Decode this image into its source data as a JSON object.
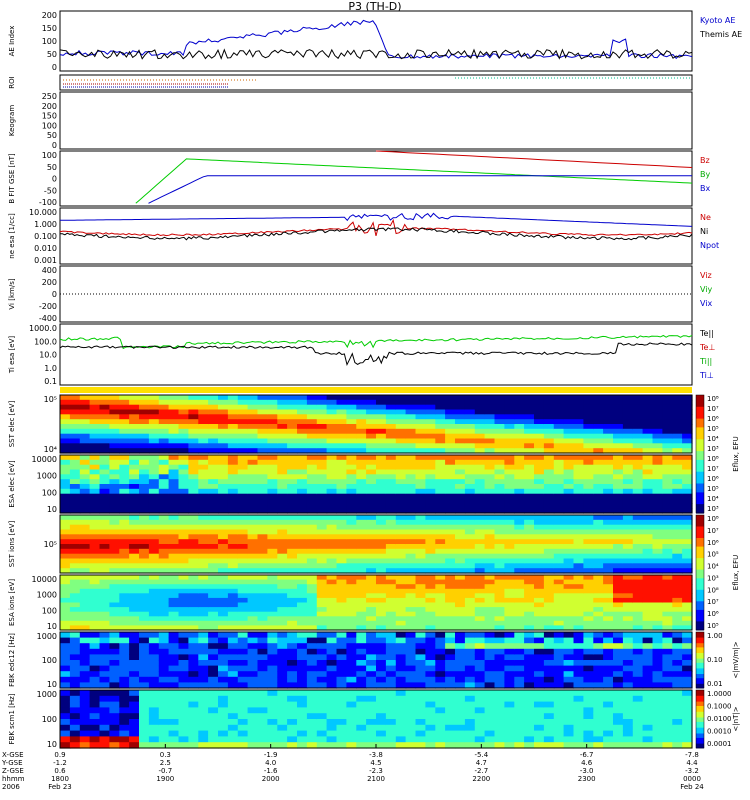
{
  "title": "P3 (TH-D)",
  "chart_data": {
    "type": "line",
    "panels": [
      {
        "name": "ae",
        "ylabel": "AE Index",
        "yticks": [
          "200",
          "150",
          "100",
          "50",
          "0"
        ],
        "legend": [
          {
            "label": "Kyoto AE",
            "color": "#0000cc"
          },
          {
            "label": "Themis AE",
            "color": "#000000"
          }
        ]
      },
      {
        "name": "roi",
        "ylabel": "ROI",
        "yticks": [],
        "legend": []
      },
      {
        "name": "keogram",
        "ylabel": "Keogram",
        "yticks": [
          "250",
          "200",
          "150",
          "100",
          "50",
          "0"
        ],
        "legend": []
      },
      {
        "name": "bfield",
        "ylabel": "B FIT GSE [nT]",
        "yticks": [
          "100",
          "50",
          "0",
          "-50",
          "-100"
        ],
        "legend": [
          {
            "label": "Bz",
            "color": "#cc0000"
          },
          {
            "label": "By",
            "color": "#00aa00"
          },
          {
            "label": "Bx",
            "color": "#0000cc"
          }
        ]
      },
      {
        "name": "density",
        "ylabel": "ne esa [1/cc]",
        "yticks": [
          "10.000",
          "1.000",
          "0.100",
          "0.010",
          "0.001"
        ],
        "legend": [
          {
            "label": "Ne",
            "color": "#cc0000"
          },
          {
            "label": "Ni",
            "color": "#000000"
          },
          {
            "label": "Npot",
            "color": "#0000cc"
          }
        ]
      },
      {
        "name": "velocity",
        "ylabel": "Vi [km/s]",
        "yticks": [
          "400",
          "200",
          "0",
          "-200",
          "-400"
        ],
        "legend": [
          {
            "label": "Viz",
            "color": "#cc0000"
          },
          {
            "label": "Viy",
            "color": "#00aa00"
          },
          {
            "label": "Vix",
            "color": "#0000cc"
          }
        ]
      },
      {
        "name": "temperature",
        "ylabel": "Ti esa [eV]",
        "yticks": [
          "1000.0",
          "100.0",
          "10.0",
          "1.0",
          "0.1"
        ],
        "legend": [
          {
            "label": "Te||",
            "color": "#000000"
          },
          {
            "label": "Te⊥",
            "color": "#cc0000"
          },
          {
            "label": "Ti||",
            "color": "#00aa00"
          },
          {
            "label": "Ti⊥",
            "color": "#0000cc"
          }
        ]
      },
      {
        "name": "sst_e",
        "ylabel": "SST elec [eV]",
        "yticks": [
          "10⁵",
          "10⁴"
        ],
        "legend": []
      },
      {
        "name": "esa_e",
        "ylabel": "ESA elec [eV]",
        "yticks": [
          "10000",
          "1000",
          "100",
          "10"
        ],
        "legend": []
      },
      {
        "name": "sst_i",
        "ylabel": "SST ions [eV]",
        "yticks": [
          "10⁵"
        ],
        "legend": []
      },
      {
        "name": "esa_i",
        "ylabel": "ESA ions [eV]",
        "yticks": [
          "10000",
          "1000",
          "100",
          "10"
        ],
        "legend": []
      },
      {
        "name": "fbk_e",
        "ylabel": "FBK edc12 [Hz]",
        "yticks": [
          "1000",
          "100",
          "10"
        ],
        "legend": []
      },
      {
        "name": "fbk_b",
        "ylabel": "FBK scm1 [Hz]",
        "yticks": [
          "1000",
          "100",
          "10"
        ],
        "legend": []
      }
    ],
    "colorbars": {
      "eflux_top": {
        "label": "Eflux, EFU",
        "ticks": [
          "10⁸",
          "10⁷",
          "10⁶",
          "10⁵",
          "10⁴",
          "10³",
          "10⁸",
          "10⁷",
          "10⁶",
          "10⁵",
          "10⁴",
          "10³"
        ]
      },
      "eflux_bottom": {
        "label": "Eflux, EFU",
        "ticks": [
          "10⁸",
          "10⁷",
          "10⁶",
          "10⁵",
          "10⁴",
          "10³",
          "10⁸",
          "10⁷",
          "10⁶",
          "10⁵"
        ]
      },
      "fbk_e": {
        "label": "<|mV/m|>",
        "ticks": [
          "1.00",
          "0.10",
          "0.01"
        ]
      },
      "fbk_b": {
        "label": "<|nT|>",
        "ticks": [
          "1.0000",
          "0.1000",
          "0.0100",
          "0.0010",
          "0.0001"
        ]
      }
    },
    "x_axis": {
      "row_labels": [
        "X-GSE",
        "Y-GSE",
        "Z-GSE",
        "hhmm",
        "2006"
      ],
      "ticks": [
        {
          "vals": [
            "0.9",
            "-1.2",
            "0.6",
            "1800",
            "Feb 23"
          ]
        },
        {
          "vals": [
            "0.3",
            "2.5",
            "-0.7",
            "1900",
            ""
          ]
        },
        {
          "vals": [
            "-1.9",
            "4.0",
            "-1.6",
            "2000",
            ""
          ]
        },
        {
          "vals": [
            "-3.8",
            "4.5",
            "-2.3",
            "2100",
            ""
          ]
        },
        {
          "vals": [
            "-5.4",
            "4.7",
            "-2.7",
            "2200",
            ""
          ]
        },
        {
          "vals": [
            "-6.7",
            "4.6",
            "-3.0",
            "2300",
            ""
          ]
        },
        {
          "vals": [
            "-7.8",
            "4.4",
            "-3.2",
            "0000",
            "Feb 24"
          ]
        }
      ]
    }
  }
}
